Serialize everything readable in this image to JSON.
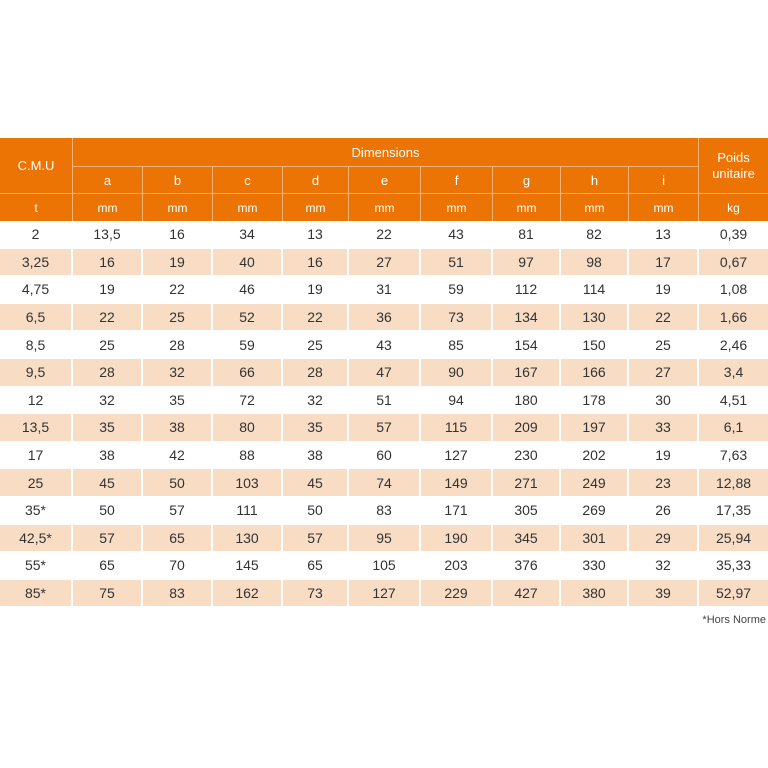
{
  "header": {
    "cmu": "C.M.U",
    "dimensions": "Dimensions",
    "poids_line1": "Poids",
    "poids_line2": "unitaire",
    "letters": [
      "a",
      "b",
      "c",
      "d",
      "e",
      "f",
      "g",
      "h",
      "i"
    ],
    "units": [
      "t",
      "mm",
      "mm",
      "mm",
      "mm",
      "mm",
      "mm",
      "mm",
      "mm",
      "mm",
      "kg"
    ]
  },
  "rows": [
    [
      "2",
      "13,5",
      "16",
      "34",
      "13",
      "22",
      "43",
      "81",
      "82",
      "13",
      "0,39"
    ],
    [
      "3,25",
      "16",
      "19",
      "40",
      "16",
      "27",
      "51",
      "97",
      "98",
      "17",
      "0,67"
    ],
    [
      "4,75",
      "19",
      "22",
      "46",
      "19",
      "31",
      "59",
      "112",
      "114",
      "19",
      "1,08"
    ],
    [
      "6,5",
      "22",
      "25",
      "52",
      "22",
      "36",
      "73",
      "134",
      "130",
      "22",
      "1,66"
    ],
    [
      "8,5",
      "25",
      "28",
      "59",
      "25",
      "43",
      "85",
      "154",
      "150",
      "25",
      "2,46"
    ],
    [
      "9,5",
      "28",
      "32",
      "66",
      "28",
      "47",
      "90",
      "167",
      "166",
      "27",
      "3,4"
    ],
    [
      "12",
      "32",
      "35",
      "72",
      "32",
      "51",
      "94",
      "180",
      "178",
      "30",
      "4,51"
    ],
    [
      "13,5",
      "35",
      "38",
      "80",
      "35",
      "57",
      "115",
      "209",
      "197",
      "33",
      "6,1"
    ],
    [
      "17",
      "38",
      "42",
      "88",
      "38",
      "60",
      "127",
      "230",
      "202",
      "19",
      "7,63"
    ],
    [
      "25",
      "45",
      "50",
      "103",
      "45",
      "74",
      "149",
      "271",
      "249",
      "23",
      "12,88"
    ],
    [
      "35*",
      "50",
      "57",
      "111",
      "50",
      "83",
      "171",
      "305",
      "269",
      "26",
      "17,35"
    ],
    [
      "42,5*",
      "57",
      "65",
      "130",
      "57",
      "95",
      "190",
      "345",
      "301",
      "29",
      "25,94"
    ],
    [
      "55*",
      "65",
      "70",
      "145",
      "65",
      "105",
      "203",
      "376",
      "330",
      "32",
      "35,33"
    ],
    [
      "85*",
      "75",
      "83",
      "162",
      "73",
      "127",
      "229",
      "427",
      "380",
      "39",
      "52,97"
    ]
  ],
  "footnote": "*Hors Norme",
  "colors": {
    "header_bg": "#ec7404",
    "header_text": "#ffffff",
    "alt_row_bg": "#f8dcc4",
    "cell_text": "#333333"
  }
}
